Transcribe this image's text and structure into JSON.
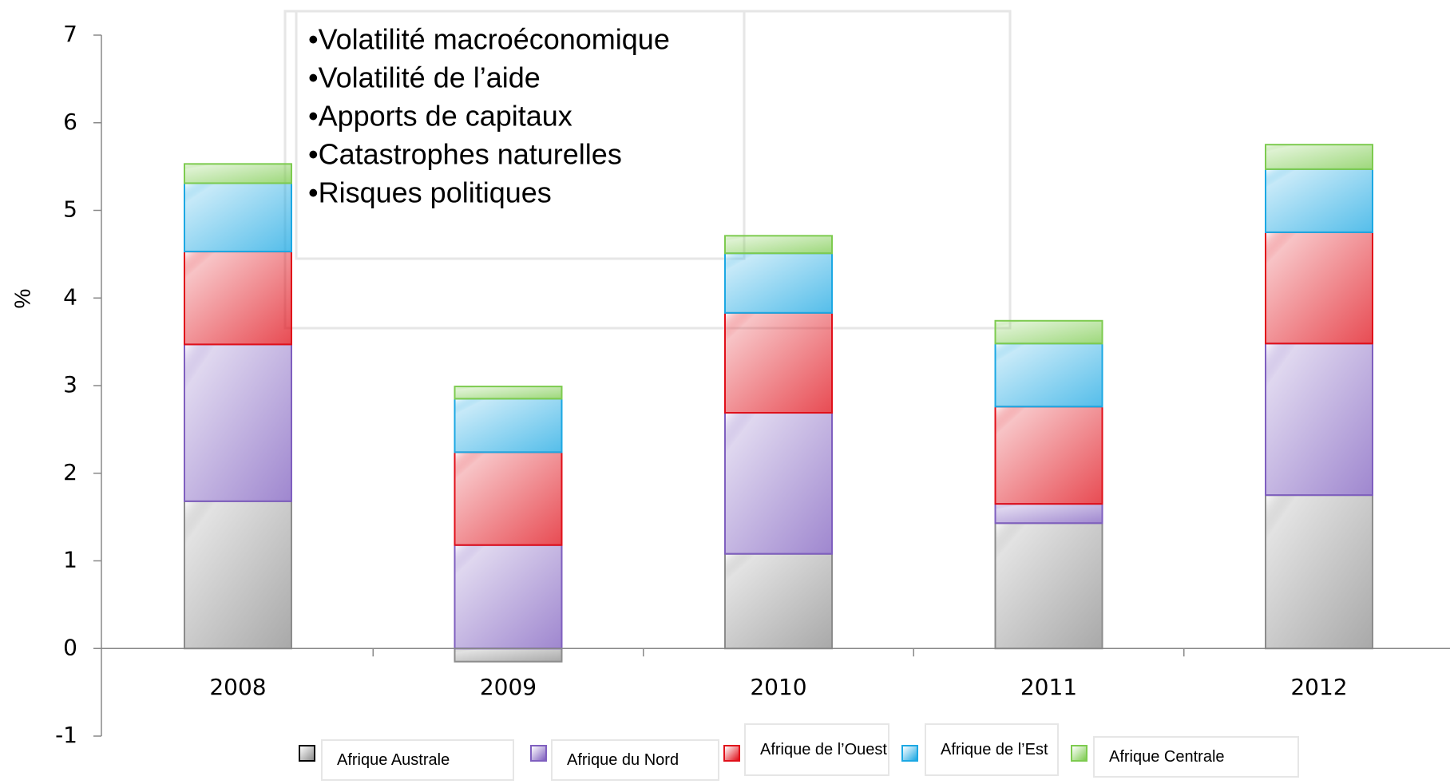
{
  "chart_data": {
    "type": "stacked_bar",
    "y_label": "%",
    "categories": [
      "2008",
      "2009",
      "2010",
      "2011",
      "2012"
    ],
    "series": [
      {
        "name": "Afrique Australe",
        "color": "#8c8c8c",
        "values": [
          1.68,
          -0.15,
          1.08,
          1.43,
          1.75
        ]
      },
      {
        "name": "Afrique du Nord",
        "color": "#7f5fbf",
        "values": [
          1.79,
          1.18,
          1.61,
          0.22,
          1.73
        ]
      },
      {
        "name": "Afrique de l’Ouest",
        "color": "#e0101a",
        "values": [
          1.06,
          1.06,
          1.14,
          1.11,
          1.27
        ]
      },
      {
        "name": "Afrique de l’Est",
        "color": "#1ca8e3",
        "values": [
          0.78,
          0.61,
          0.68,
          0.72,
          0.72
        ]
      },
      {
        "name": "Afrique Centrale",
        "color": "#7dcb4f",
        "values": [
          0.22,
          0.14,
          0.2,
          0.26,
          0.28
        ]
      }
    ],
    "ylim": [
      -1,
      7
    ],
    "yticks": [
      -1,
      0,
      1,
      2,
      3,
      4,
      5,
      6,
      7
    ],
    "annotation_lines": [
      "•Volatilité macroéconomique",
      "•Volatilité de l’aide",
      "•Apports de capitaux",
      "•Catastrophes naturelles",
      "•Risques politiques"
    ]
  }
}
